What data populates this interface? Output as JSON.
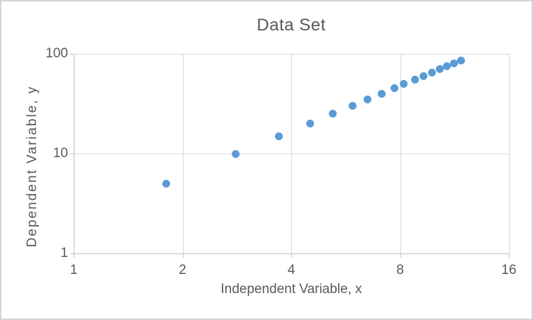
{
  "chart": {
    "title": "Data Set",
    "x_axis": {
      "label": "Independent Variable, x",
      "tick_labels": [
        "1",
        "2",
        "4",
        "8",
        "16"
      ]
    },
    "y_axis": {
      "label": "Dependent Variable, y",
      "tick_labels": [
        "1",
        "10",
        "100"
      ]
    }
  },
  "chart_data": {
    "type": "scatter",
    "title": "Data Set",
    "xlabel": "Independent Variable, x",
    "ylabel": "Dependent Variable, y",
    "x_scale": "log",
    "y_scale": "log",
    "xlim": [
      1,
      16
    ],
    "ylim": [
      1,
      100
    ],
    "x_ticks": [
      1,
      2,
      4,
      8,
      16
    ],
    "y_ticks": [
      1,
      10,
      100
    ],
    "grid": true,
    "legend": false,
    "marker_color": "#5B9BD5",
    "x": [
      1.8,
      2.8,
      3.7,
      4.5,
      5.2,
      5.9,
      6.5,
      7.1,
      7.7,
      8.2,
      8.8,
      9.3,
      9.8,
      10.3,
      10.8,
      11.3,
      11.8
    ],
    "y": [
      5,
      10,
      15,
      20,
      25,
      30,
      35,
      40,
      45,
      50,
      55,
      60,
      65,
      70,
      75,
      80,
      85
    ]
  },
  "colors": {
    "text": "#595959",
    "gridline": "#D9D9D9",
    "axis_line": "#BFBFBF",
    "marker": "#5B9BD5",
    "background": "#FFFFFF",
    "border": "#D4D4D4"
  }
}
